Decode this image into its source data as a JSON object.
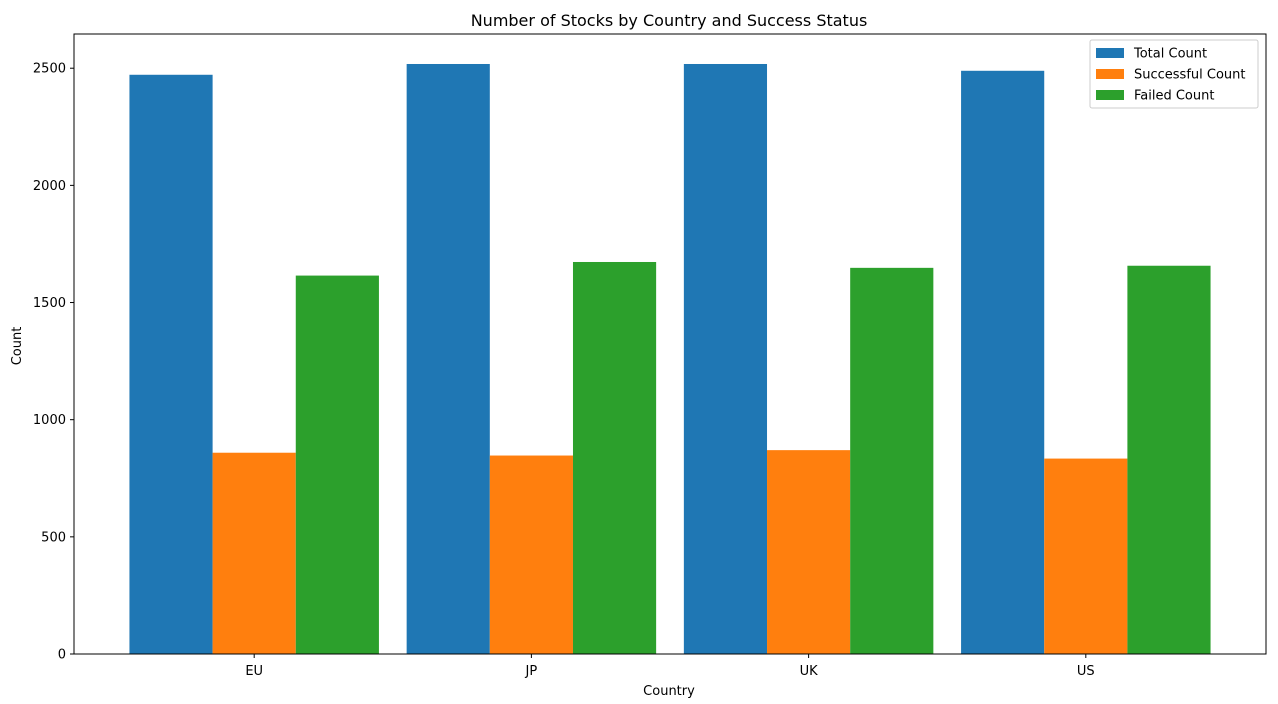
{
  "chart_data": {
    "type": "bar",
    "title": "Number of Stocks by Country and Success Status",
    "xlabel": "Country",
    "ylabel": "Count",
    "categories": [
      "EU",
      "JP",
      "UK",
      "US"
    ],
    "series": [
      {
        "name": "Total Count",
        "color": "#1f77b4",
        "values": [
          2472,
          2518,
          2518,
          2489
        ]
      },
      {
        "name": "Successful Count",
        "color": "#ff7f0e",
        "values": [
          859,
          847,
          870,
          834
        ]
      },
      {
        "name": "Failed Count",
        "color": "#2ca02c",
        "values": [
          1615,
          1673,
          1648,
          1657
        ]
      }
    ],
    "ylim": [
      0,
      2646
    ],
    "yticks": [
      0,
      500,
      1000,
      1500,
      2000,
      2500
    ],
    "grid": false,
    "legend_position": "top-right"
  }
}
